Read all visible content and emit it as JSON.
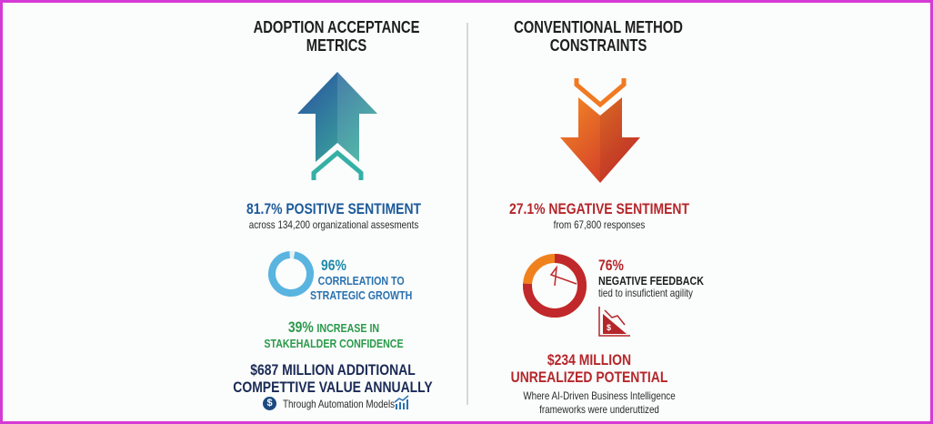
{
  "left": {
    "title": [
      "ADOPTION ACCEPTANCE",
      "METRICS"
    ],
    "arrow_icon": "arrow-up-icon",
    "headline": "81.7% POSITIVE SENTIMENT",
    "subline": "across 134,200 organizational assesments",
    "correlation": {
      "value": "96%",
      "label": [
        "CORRLEATION TO",
        "STRATEGIC GROWTH"
      ],
      "donut_fill_percent": 96
    },
    "confidence": {
      "value": "39%",
      "label_1": "INCREASE IN",
      "label_2": "STAKEHALDER CONFIDENCE"
    },
    "value_headline": [
      "$687 MILLION ADDITIONAL",
      "COMPETTIVE VALUE ANNUALLY"
    ],
    "footer": {
      "text": "Through Automation Models",
      "left_icon": "dollar-circle-icon",
      "right_icon": "bar-chart-growth-icon"
    }
  },
  "right": {
    "title": [
      "CONVENTIONAL METHOD",
      "CONSTRAINTS"
    ],
    "arrow_icon": "arrow-down-icon",
    "headline": "27.1% NEGATIVE SENTIMENT",
    "subline": "from 67,800 responses",
    "feedback": {
      "value": "76%",
      "label": "NEGATIVE FEEDBACK",
      "sublabel": "tied to insufictient agility",
      "donut_fill_percent": 76
    },
    "decline_icon": "declining-dollar-chart-icon",
    "value_headline": [
      "$234 MILLION",
      "UNREALIZED POTENTIAL"
    ],
    "footer": [
      "Where AI-Driven Business Intelligence",
      "frameworks were underuttized"
    ]
  },
  "colors": {
    "border": "#d63ad6",
    "blue": "#1c5a9a",
    "teal": "#1f8aa8",
    "green": "#2a9a4a",
    "navy": "#1a2a55",
    "red": "#b5262a",
    "orange": "#f0821e"
  }
}
